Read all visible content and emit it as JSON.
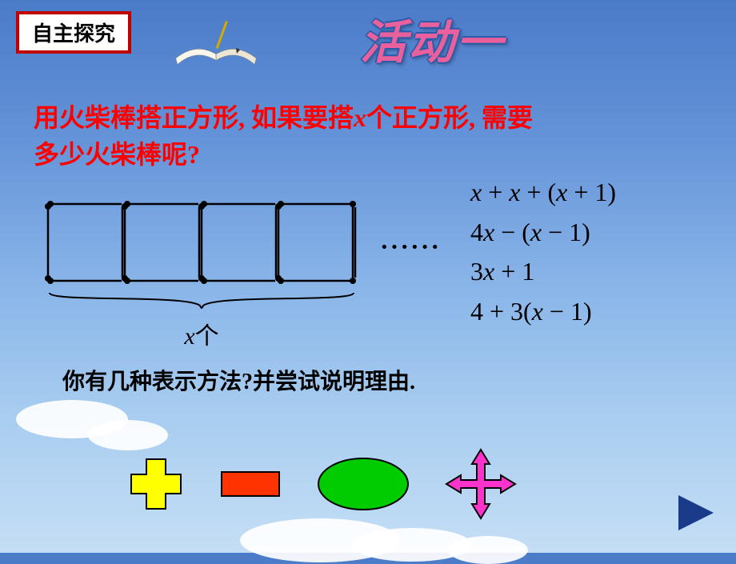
{
  "header_box": "自主探究",
  "title_art": "活动一",
  "question": {
    "line1_pre": "用火柴棒搭正方形, 如果要搭",
    "line1_var": "x",
    "line1_post": "个正方形, 需要",
    "line2": "多少火柴棒呢?"
  },
  "diagram": {
    "squares_count": 4,
    "square_size": 96,
    "stroke": "#000000",
    "dot_radius": 4
  },
  "dots_text": "······",
  "brace_label": {
    "var": "x",
    "suffix": "个"
  },
  "formulas": [
    "x + x + (x + 1)",
    "4x − (x − 1)",
    "3x + 1",
    "4 + 3(x − 1)"
  ],
  "sub_question": "你有几种表示方法?并尝试说明理由.",
  "shapes": {
    "plus": {
      "fill": "#ffff00",
      "stroke": "#000000"
    },
    "minus": {
      "fill": "#ff3300",
      "stroke": "#000000"
    },
    "ellipse": {
      "fill": "#00cc00",
      "stroke": "#000000"
    },
    "arrows": {
      "fill": "#ff33cc",
      "stroke": "#000000"
    }
  },
  "nav_play": {
    "fill": "#1a3a8a"
  },
  "colors": {
    "header_text": "#000000",
    "header_border": "#c00000",
    "title_fill": "#e8609c",
    "title_outline": "#2a5aa8",
    "question_text": "#ff0000",
    "formula_text": "#000000",
    "subq_text": "#000000"
  }
}
